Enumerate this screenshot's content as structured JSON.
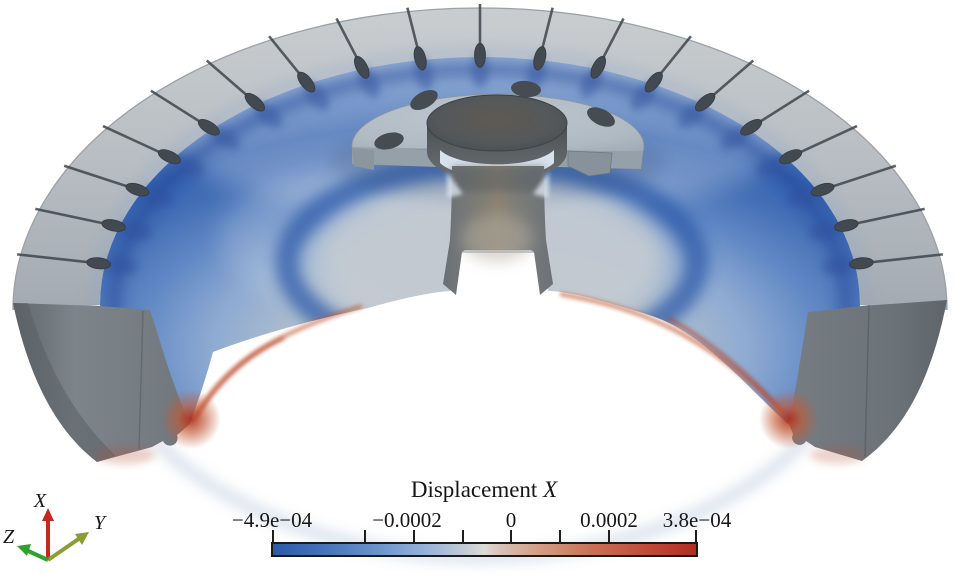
{
  "figure": {
    "background": "#ffffff",
    "kind": "FEA displacement contour render of half-sectioned bladed disk"
  },
  "colorbar": {
    "title_prefix": "Displacement ",
    "title_variable": "X",
    "tick_labels": [
      "−4.9e−04",
      "−0.0002",
      "0",
      "0.0002",
      "3.8e−04"
    ],
    "range_min": "−4.9e−04",
    "range_max": "3.8e−04",
    "gradient": [
      "#2c5aa8",
      "#6b94cc",
      "#dddbd6",
      "#c97257",
      "#b22c24"
    ]
  },
  "orientation_axes": {
    "x": {
      "label": "X",
      "color": "#c5281c"
    },
    "y": {
      "label": "Y",
      "color": "#8e9c35"
    },
    "z": {
      "label": "Z",
      "color": "#2fa12e"
    }
  },
  "model": {
    "rim_slot_count": 19,
    "bolt_hole_count": 4,
    "field_colors": {
      "negative": "#2c5aa8",
      "zero": "#dddbd6",
      "positive": "#b22c24"
    }
  }
}
